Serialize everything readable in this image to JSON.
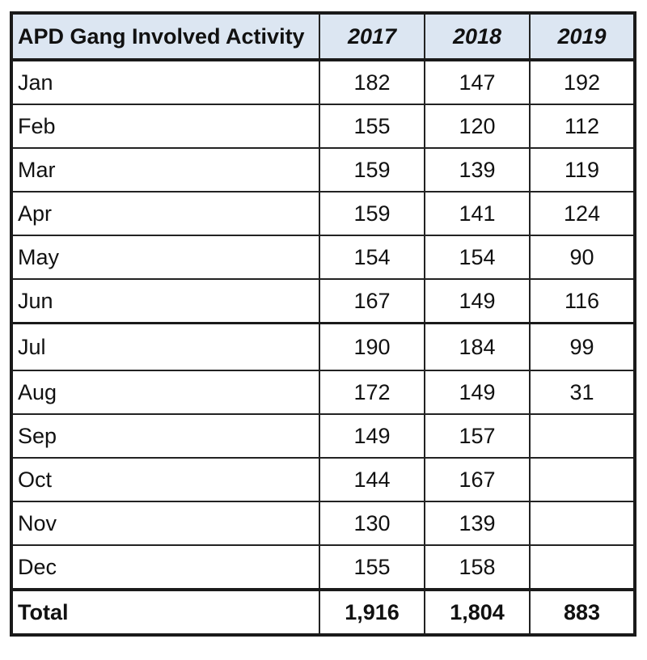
{
  "table": {
    "header_label": "APD Gang Involved Activity",
    "years": [
      "2017",
      "2018",
      "2019"
    ],
    "total_label": "Total"
  },
  "chart_data": {
    "type": "table",
    "title": "APD Gang Involved Activity",
    "columns": [
      "APD Gang Involved Activity",
      "2017",
      "2018",
      "2019"
    ],
    "rows": [
      {
        "month": "Jan",
        "values": [
          "182",
          "147",
          "192"
        ]
      },
      {
        "month": "Feb",
        "values": [
          "155",
          "120",
          "112"
        ]
      },
      {
        "month": "Mar",
        "values": [
          "159",
          "139",
          "119"
        ]
      },
      {
        "month": "Apr",
        "values": [
          "159",
          "141",
          "124"
        ]
      },
      {
        "month": "May",
        "values": [
          "154",
          "154",
          "90"
        ]
      },
      {
        "month": "Jun",
        "values": [
          "167",
          "149",
          "116"
        ]
      },
      {
        "month": "Jul",
        "values": [
          "190",
          "184",
          "99"
        ]
      },
      {
        "month": "Aug",
        "values": [
          "172",
          "149",
          "31"
        ]
      },
      {
        "month": "Sep",
        "values": [
          "149",
          "157",
          ""
        ]
      },
      {
        "month": "Oct",
        "values": [
          "144",
          "167",
          ""
        ]
      },
      {
        "month": "Nov",
        "values": [
          "130",
          "139",
          ""
        ]
      },
      {
        "month": "Dec",
        "values": [
          "155",
          "158",
          ""
        ]
      }
    ],
    "totals": [
      "1,916",
      "1,804",
      "883"
    ]
  }
}
